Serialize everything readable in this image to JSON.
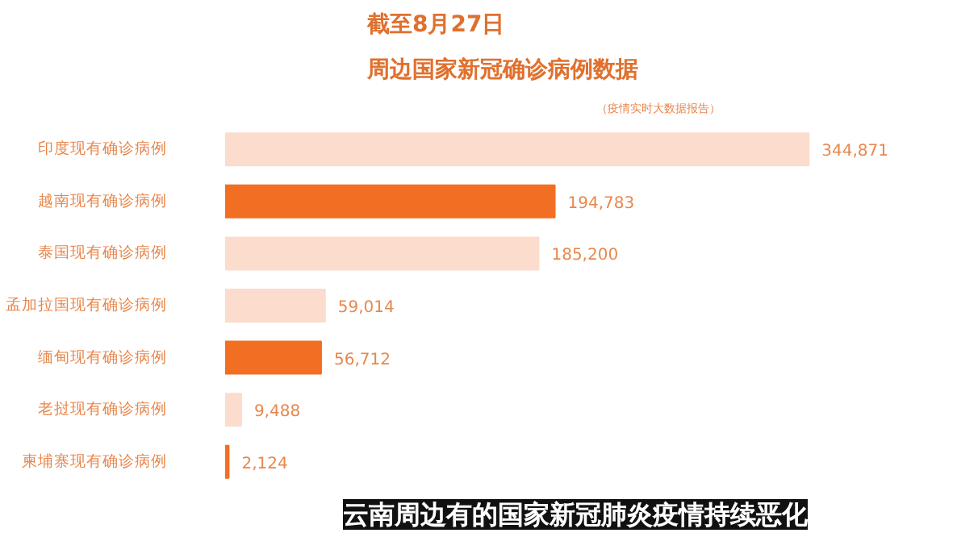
{
  "chart_data": {
    "type": "bar",
    "orientation": "horizontal",
    "title": "截至8月27日",
    "subtitle": "周边国家新冠确诊病例数据",
    "categories": [
      "印度现有确诊病例",
      "越南现有确诊病例",
      "泰国现有确诊病例",
      "孟加拉国现有确诊病例",
      "缅甸现有确诊病例",
      "老挝现有确诊病例",
      "柬埔寨现有确诊病例"
    ],
    "values": [
      344871,
      194783,
      185200,
      59014,
      56712,
      9488,
      2124
    ],
    "colors": [
      "#fcdccc",
      "#f26e22",
      "#fcdccc",
      "#fcdccc",
      "#f26e22",
      "#fcdccc",
      "#f26e22"
    ],
    "value_labels": [
      "344,871",
      "194,783",
      "185,200",
      "59,014",
      "56,712",
      "9,488",
      "2,124"
    ],
    "annotations": [
      "（疫情实时大数据报告）",
      "云南周边有的国家新冠肺炎疫情持续恶化"
    ],
    "grid": false
  }
}
